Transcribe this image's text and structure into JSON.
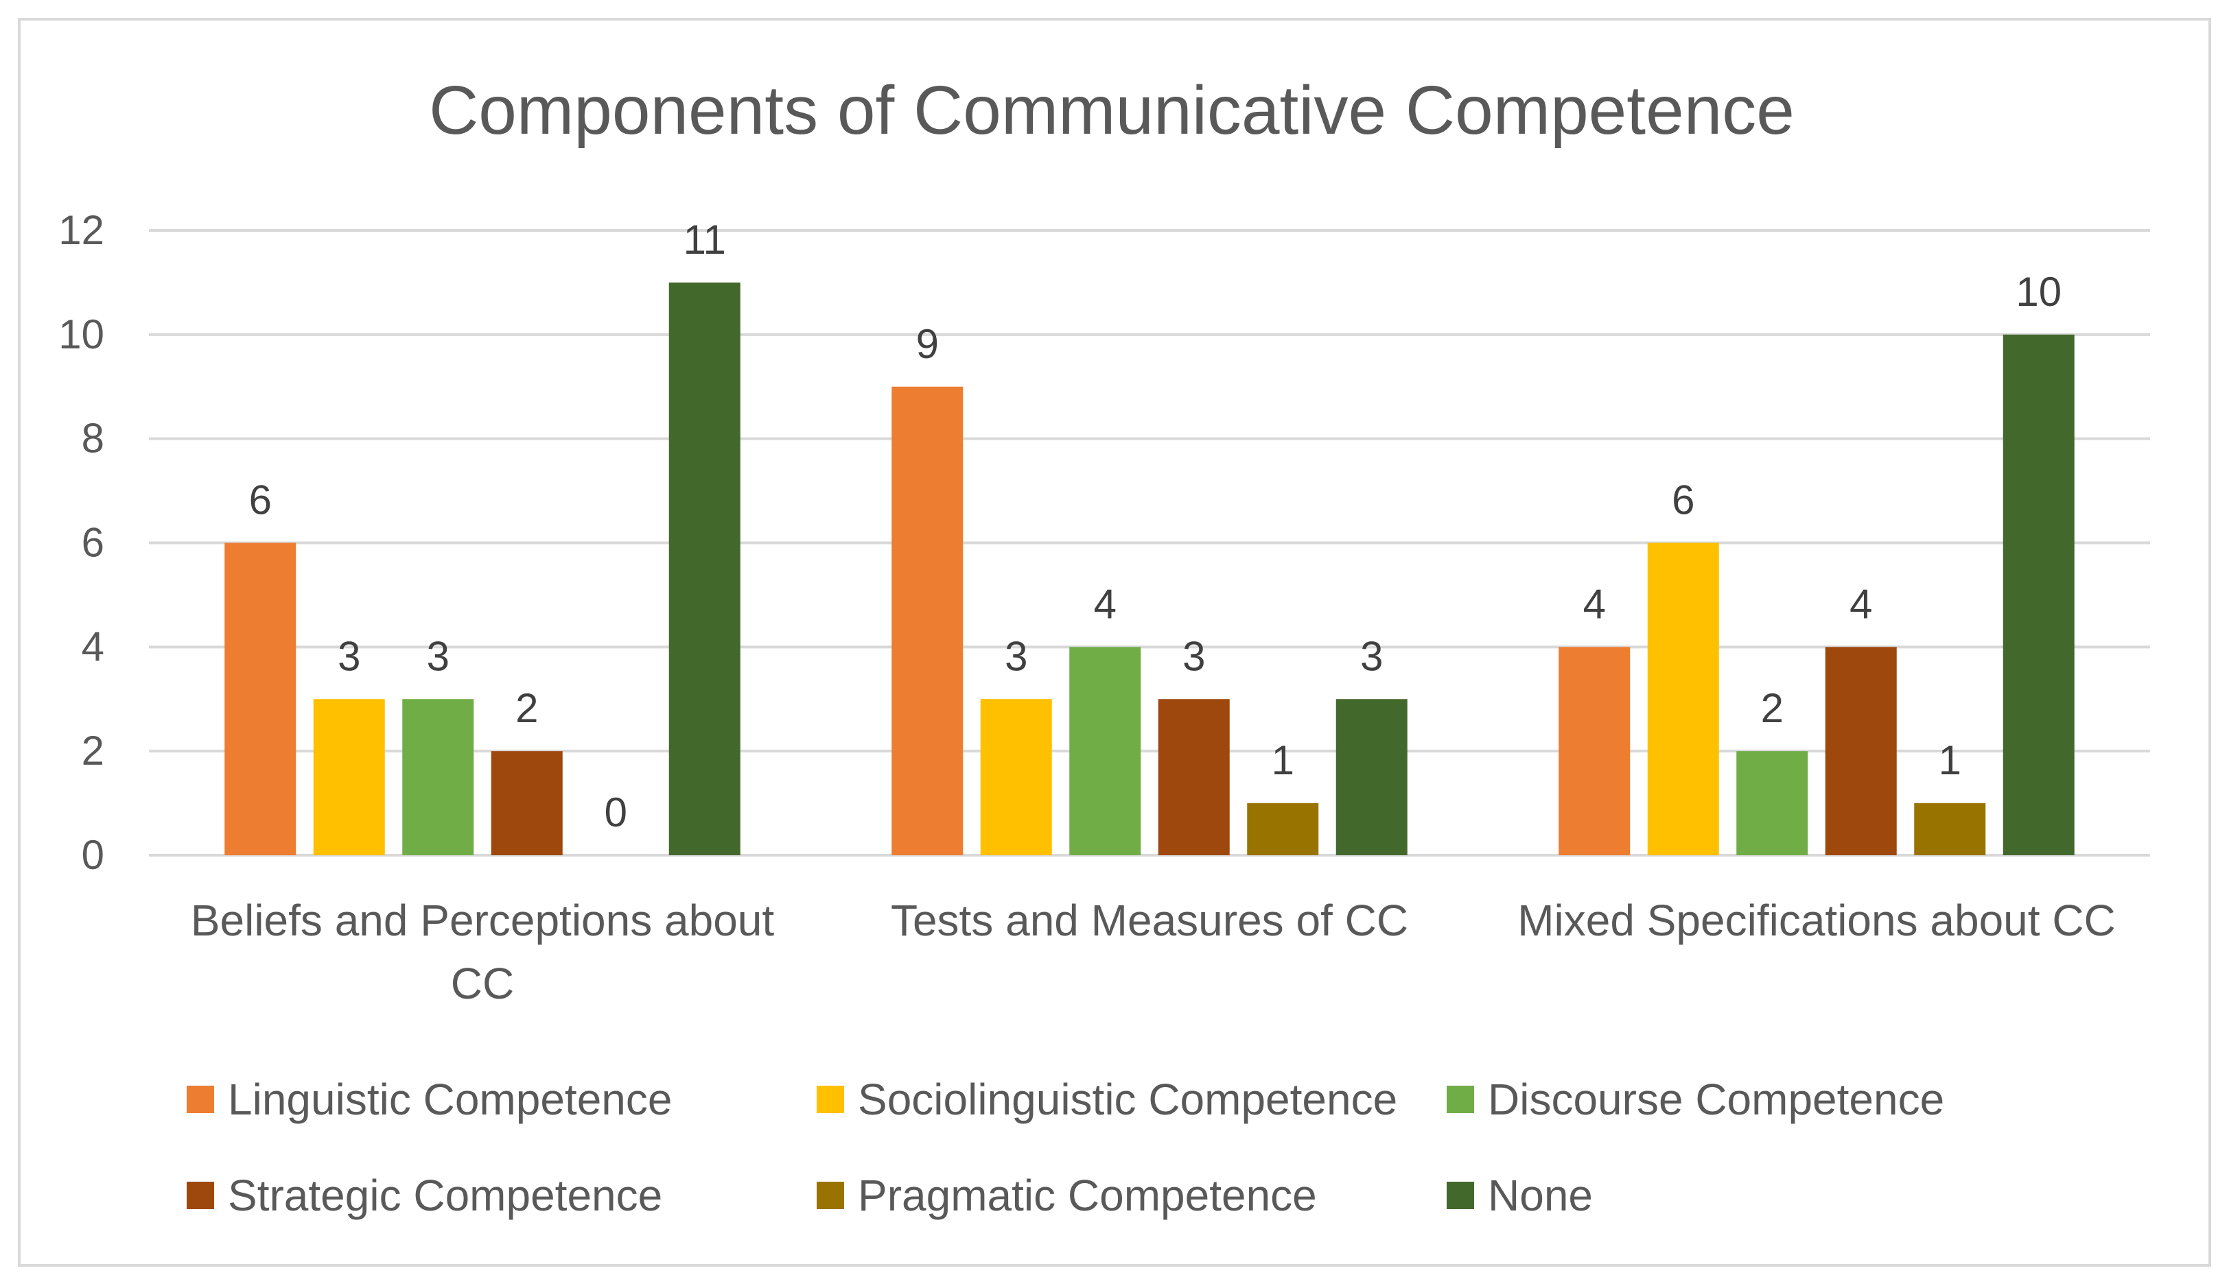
{
  "chart_data": {
    "type": "bar",
    "title": "Components of Communicative Competence",
    "categories": [
      [
        "Beliefs and Perceptions about",
        "CC"
      ],
      [
        "Tests and Measures of CC"
      ],
      [
        "Mixed Specifications about CC"
      ]
    ],
    "series": [
      {
        "name": "Linguistic Competence",
        "color": "#ED7D31",
        "values": [
          6,
          9,
          4
        ]
      },
      {
        "name": "Sociolinguistic Competence",
        "color": "#FFC000",
        "values": [
          3,
          3,
          6
        ]
      },
      {
        "name": "Discourse Competence",
        "color": "#70AD47",
        "values": [
          3,
          4,
          2
        ]
      },
      {
        "name": "Strategic Competence",
        "color": "#9E480E",
        "values": [
          2,
          3,
          4
        ]
      },
      {
        "name": "Pragmatic Competence",
        "color": "#997300",
        "values": [
          0,
          1,
          1
        ]
      },
      {
        "name": "None",
        "color": "#43682B",
        "values": [
          11,
          3,
          10
        ]
      }
    ],
    "yticks": [
      0,
      2,
      4,
      6,
      8,
      10,
      12
    ],
    "ylim": [
      0,
      12
    ],
    "xlabel": "",
    "ylabel": "",
    "grid": true,
    "data_labels": true,
    "legend_position": "bottom"
  }
}
